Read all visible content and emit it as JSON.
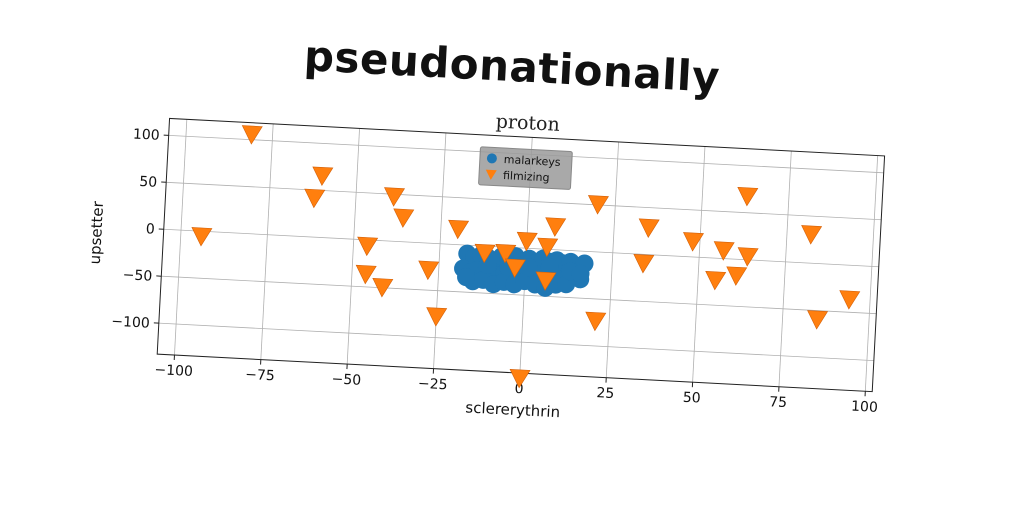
{
  "page_title": "pseudonationally",
  "chart_data": {
    "type": "scatter",
    "title": "proton",
    "xlabel": "sclererythrin",
    "ylabel": "upsetter",
    "xlim": [
      -105,
      102
    ],
    "ylim": [
      -133,
      118
    ],
    "xticks": [
      -100,
      -75,
      -50,
      -25,
      0,
      25,
      50,
      75,
      100
    ],
    "xtick_labels": [
      "−100",
      "−75",
      "−50",
      "−25",
      "0",
      "25",
      "50",
      "75",
      "100"
    ],
    "yticks": [
      -100,
      -50,
      0,
      50,
      100
    ],
    "ytick_labels": [
      "−100",
      "−50",
      "0",
      "50",
      "100"
    ],
    "grid": true,
    "legend_position": "top-center",
    "series": [
      {
        "name": "malarkeys",
        "marker": "circle",
        "color": "#1f77b4",
        "points": [
          [
            -17,
            -9
          ],
          [
            -15,
            -13
          ],
          [
            -13,
            -10
          ],
          [
            -11,
            -12
          ],
          [
            -9,
            -15
          ],
          [
            -7,
            -10
          ],
          [
            -5,
            -13
          ],
          [
            -3,
            -9
          ],
          [
            -1,
            -14
          ],
          [
            1,
            -11
          ],
          [
            3,
            -15
          ],
          [
            5,
            -10
          ],
          [
            7,
            -13
          ],
          [
            9,
            -11
          ],
          [
            11,
            -14
          ],
          [
            13,
            -12
          ],
          [
            15,
            -16
          ],
          [
            17,
            -13
          ],
          [
            -18,
            -25
          ],
          [
            -16,
            -29
          ],
          [
            -14,
            -26
          ],
          [
            -12,
            -30
          ],
          [
            -10,
            -27
          ],
          [
            -8,
            -31
          ],
          [
            -6,
            -28
          ],
          [
            -4,
            -25
          ],
          [
            -2,
            -29
          ],
          [
            0,
            -26
          ],
          [
            2,
            -30
          ],
          [
            4,
            -27
          ],
          [
            6,
            -31
          ],
          [
            8,
            -28
          ],
          [
            10,
            -26
          ],
          [
            12,
            -29
          ],
          [
            14,
            -27
          ],
          [
            16,
            -30
          ],
          [
            -15,
            -38
          ],
          [
            -12,
            -36
          ],
          [
            -9,
            -40
          ],
          [
            -6,
            -37
          ],
          [
            -3,
            -39
          ],
          [
            0,
            -35
          ],
          [
            3,
            -38
          ],
          [
            6,
            -41
          ],
          [
            9,
            -37
          ],
          [
            12,
            -36
          ],
          [
            -11,
            -20
          ],
          [
            -5,
            -21
          ],
          [
            1,
            -20
          ],
          [
            7,
            -19
          ],
          [
            13,
            -22
          ],
          [
            -17,
            -34
          ],
          [
            16,
            -24
          ]
        ]
      },
      {
        "name": "filmizing",
        "marker": "triangle-down",
        "color": "#ff7f0e",
        "points": [
          [
            -81,
            106
          ],
          [
            -60,
            66
          ],
          [
            -62,
            42
          ],
          [
            -39,
            48
          ],
          [
            -36,
            26
          ],
          [
            -46,
            -6
          ],
          [
            -46,
            -36
          ],
          [
            -41,
            -49
          ],
          [
            -28,
            -28
          ],
          [
            -25,
            -77
          ],
          [
            -20,
            17
          ],
          [
            -12,
            -7
          ],
          [
            -6,
            -6
          ],
          [
            -3,
            -21
          ],
          [
            0,
            8
          ],
          [
            0,
            -138
          ],
          [
            6,
            3
          ],
          [
            8,
            25
          ],
          [
            6,
            -33
          ],
          [
            20,
            51
          ],
          [
            21,
            -73
          ],
          [
            34,
            -9
          ],
          [
            35,
            29
          ],
          [
            48,
            17
          ],
          [
            57,
            9
          ],
          [
            55,
            -23
          ],
          [
            61,
            -17
          ],
          [
            64,
            4
          ],
          [
            63,
            68
          ],
          [
            82,
            31
          ],
          [
            85,
            -59
          ],
          [
            94,
            -36
          ],
          [
            -94,
            -5
          ]
        ]
      }
    ]
  }
}
